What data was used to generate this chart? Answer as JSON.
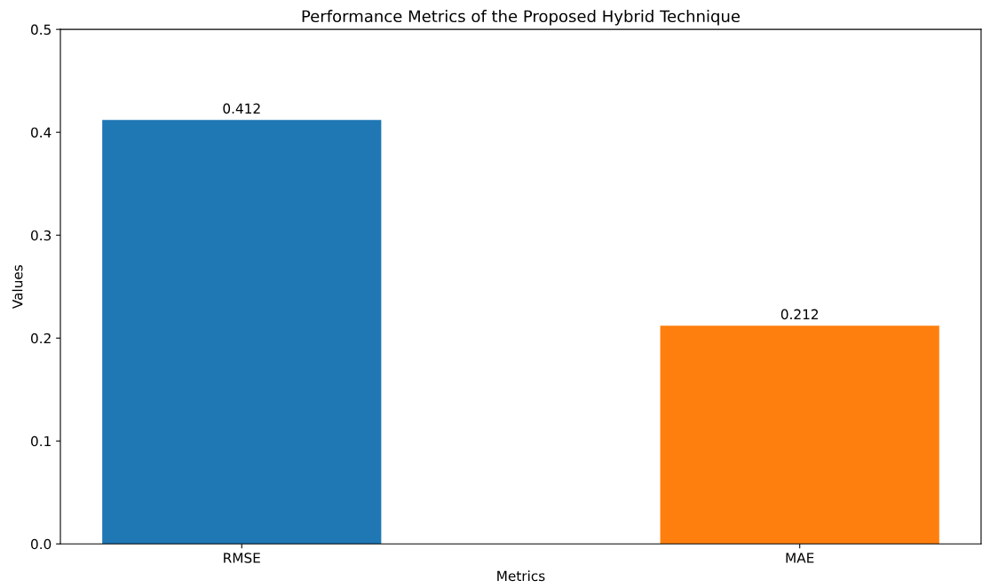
{
  "chart_data": {
    "type": "bar",
    "title": "Performance Metrics of the Proposed Hybrid Technique",
    "xlabel": "Metrics",
    "ylabel": "Values",
    "categories": [
      "RMSE",
      "MAE"
    ],
    "values": [
      0.412,
      0.212
    ],
    "colors": [
      "#1f77b4",
      "#ff7f0e"
    ],
    "data_labels": true,
    "ylim": [
      0,
      0.5
    ],
    "yticks": [
      {
        "value": 0,
        "label": "0.0"
      },
      {
        "value": 0.1,
        "label": "0.1"
      },
      {
        "value": 0.2,
        "label": "0.2"
      },
      {
        "value": 0.3,
        "label": "0.3"
      },
      {
        "value": 0.4,
        "label": "0.4"
      },
      {
        "value": 0.5,
        "label": "0.5"
      }
    ],
    "grid": false
  }
}
